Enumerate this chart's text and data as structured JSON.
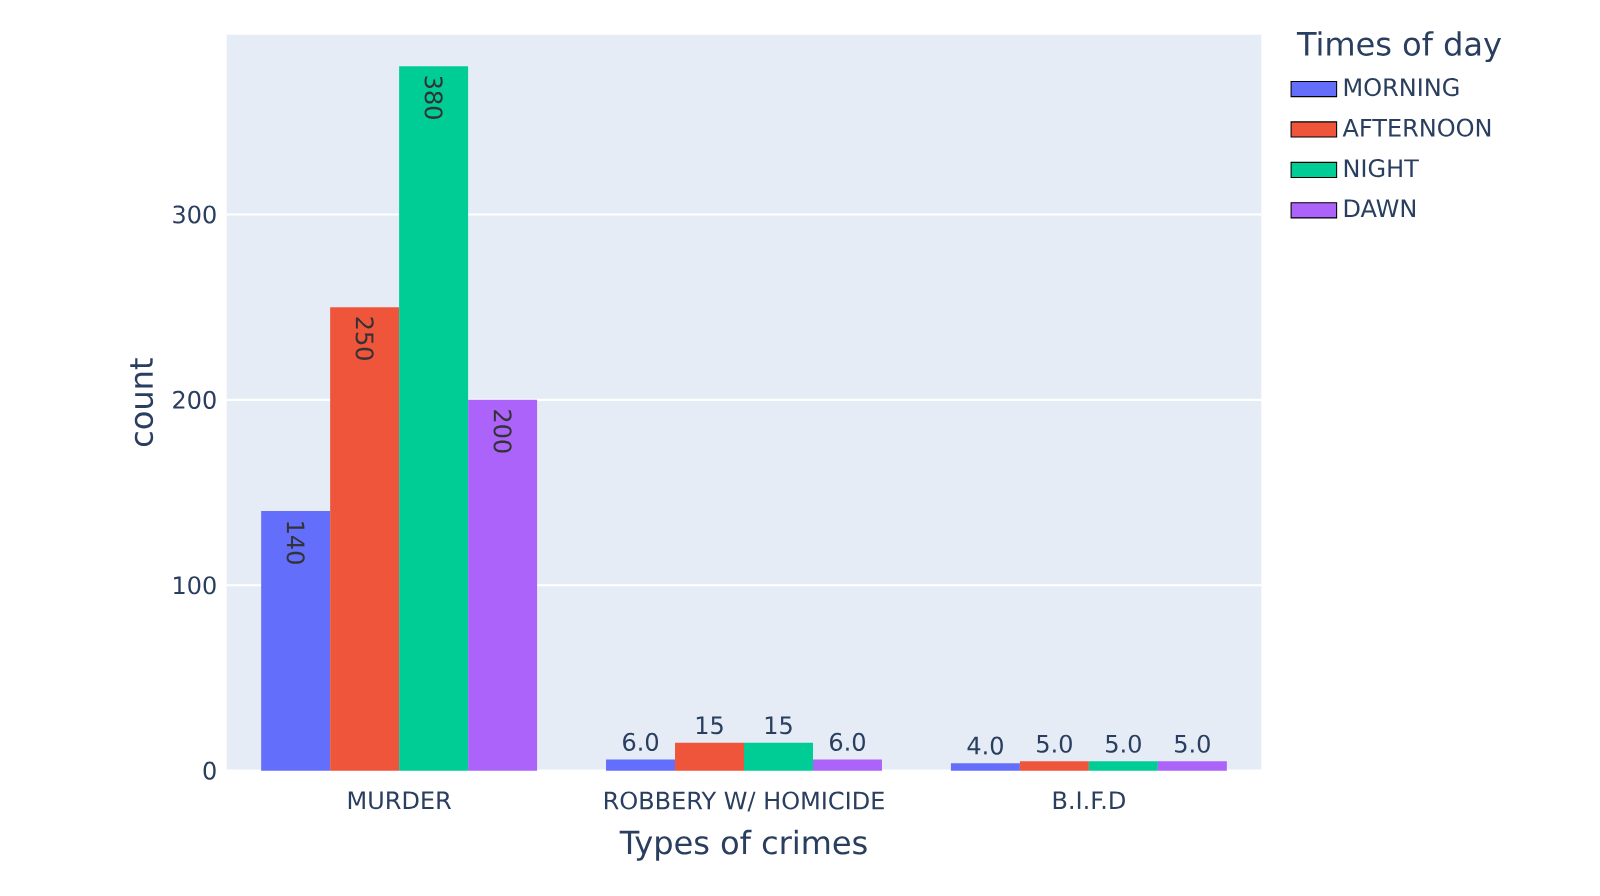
{
  "chart_data": {
    "type": "bar",
    "xlabel": "Types of crimes",
    "ylabel": "count",
    "legend_title": "Times of day",
    "categories": [
      "MURDER",
      "ROBBERY W/ HOMICIDE",
      "B.I.F.D"
    ],
    "series": [
      {
        "name": "MORNING",
        "color": "#636efa",
        "values": [
          140,
          6,
          4
        ],
        "value_labels": [
          "140",
          "6.0",
          "4.0"
        ]
      },
      {
        "name": "AFTERNOON",
        "color": "#ef553b",
        "values": [
          250,
          15,
          5
        ],
        "value_labels": [
          "250",
          "15",
          "5.0"
        ]
      },
      {
        "name": "NIGHT",
        "color": "#00cc96",
        "values": [
          380,
          15,
          5
        ],
        "value_labels": [
          "380",
          "15",
          "5.0"
        ]
      },
      {
        "name": "DAWN",
        "color": "#ab63fa",
        "values": [
          200,
          6,
          5
        ],
        "value_labels": [
          "200",
          "6.0",
          "5.0"
        ]
      }
    ],
    "ylim": [
      0,
      397
    ],
    "yticks": [
      0,
      100,
      200,
      300
    ],
    "grid": "y",
    "legend": "top right"
  }
}
